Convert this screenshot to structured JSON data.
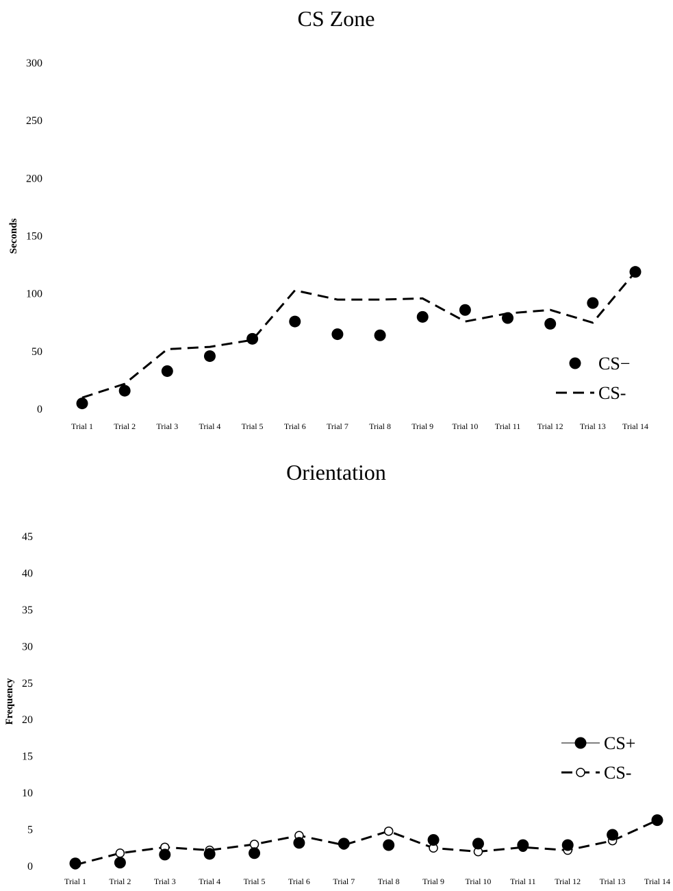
{
  "chart_data": [
    {
      "type": "line",
      "title": "CS Zone",
      "xlabel": "",
      "ylabel": "Seconds",
      "ylim": [
        0,
        300
      ],
      "yticks": [
        0,
        50,
        100,
        150,
        200,
        250,
        300
      ],
      "categories": [
        "Trial 1",
        "Trial 2",
        "Trial 3",
        "Trial 4",
        "Trial 5",
        "Trial 6",
        "Trial 7",
        "Trial 8",
        "Trial 9",
        "Trial 10",
        "Trial 11",
        "Trial 12",
        "Trial 13",
        "Trial 14"
      ],
      "grid": false,
      "legend": "right",
      "series": [
        {
          "name": "CS−",
          "style": "markers",
          "marker": "filled-circle",
          "values": [
            5,
            16,
            33,
            46,
            61,
            76,
            65,
            64,
            80,
            86,
            79,
            74,
            92,
            119
          ]
        },
        {
          "name": "CS-",
          "style": "dashed",
          "marker": "none",
          "values": [
            10,
            22,
            52,
            54,
            60,
            103,
            95,
            95,
            96,
            76,
            83,
            86,
            75,
            119
          ]
        }
      ]
    },
    {
      "type": "line",
      "title": "Orientation",
      "xlabel": "",
      "ylabel": "Frequency",
      "ylim": [
        0,
        45
      ],
      "yticks": [
        0,
        5,
        10,
        15,
        20,
        25,
        30,
        35,
        40,
        45
      ],
      "categories": [
        "Trial 1",
        "Trial 2",
        "Trial 3",
        "Trial 4",
        "Trial 5",
        "Trial 6",
        "Trial 7",
        "Trial 8",
        "Trial 9",
        "Trial 10",
        "Trial 11",
        "Trial 12",
        "Trial 13",
        "Trial 14"
      ],
      "grid": false,
      "legend": "right",
      "series": [
        {
          "name": "CS+",
          "style": "markers",
          "marker": "filled-circle",
          "values": [
            0.4,
            0.5,
            1.6,
            1.7,
            1.8,
            3.2,
            3.1,
            2.9,
            3.6,
            3.1,
            2.9,
            2.9,
            4.3,
            6.3
          ]
        },
        {
          "name": "CS-",
          "style": "dashed",
          "marker": "open-circle",
          "values": [
            0.2,
            1.8,
            2.6,
            2.2,
            3.0,
            4.2,
            2.9,
            4.8,
            2.5,
            2.0,
            2.6,
            2.2,
            3.5,
            6.3
          ]
        }
      ]
    }
  ]
}
